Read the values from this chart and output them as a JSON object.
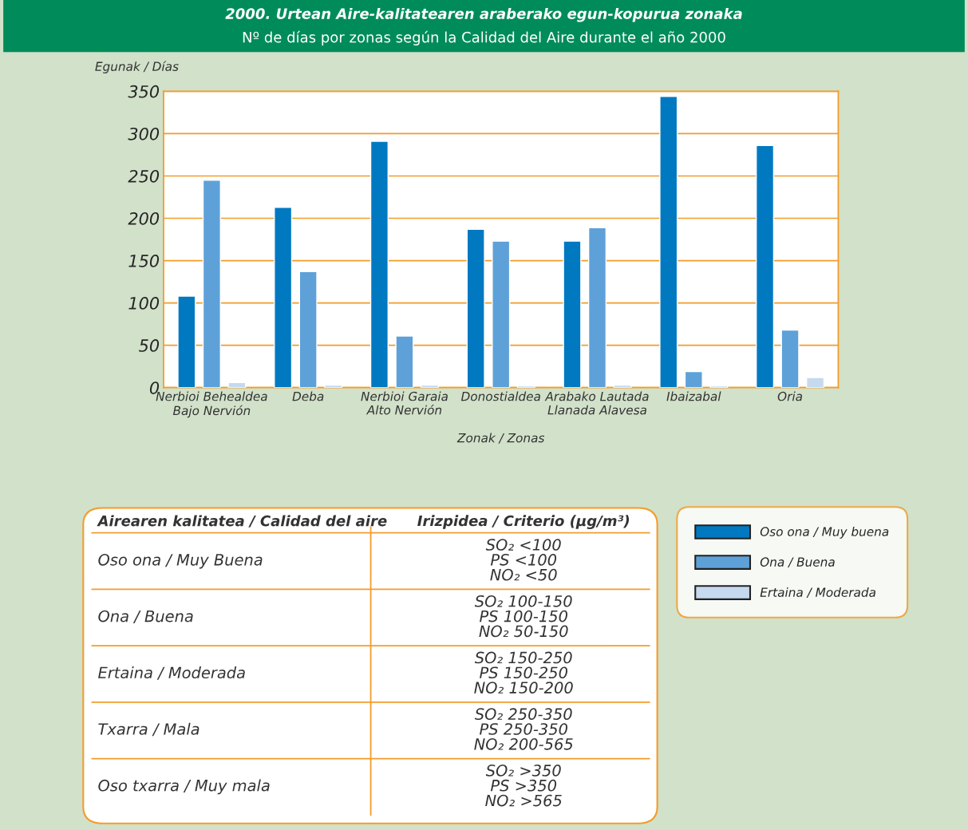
{
  "chart_data": {
    "type": "bar",
    "title": "2000. Urtean Aire-kalitatearen araberako egun-kopurua zonaka",
    "subtitle": "Nº de días por zonas según la Calidad del Aire durante el año 2000",
    "xlabel": "Zonak / Zonas",
    "ylabel": "Egunak / Días",
    "categories": [
      "Nerbioi Behealdea\nBajo Nervión",
      "Deba",
      "Nerbioi Garaia\nAlto Nervión",
      "Donostialdea",
      "Arabako Lautada\nLlanada Alavesa",
      "Ibaizabal",
      "Oria"
    ],
    "series": [
      {
        "name": "Oso ona / Muy buena",
        "color": "#0079c1",
        "values": [
          108,
          213,
          291,
          187,
          173,
          344,
          286
        ]
      },
      {
        "name": "Ona / Buena",
        "color": "#5ea1d8",
        "values": [
          245,
          137,
          61,
          173,
          189,
          19,
          68
        ]
      },
      {
        "name": "Ertaina / Moderada",
        "color": "#c5d9ef",
        "values": [
          6,
          3,
          3,
          2,
          3,
          2,
          12
        ]
      }
    ],
    "ylim": [
      0,
      350
    ],
    "yticks": [
      0,
      50,
      100,
      150,
      200,
      250,
      300,
      350
    ],
    "grid": "y",
    "legend": "bottom right",
    "annotations": [
      "Airearen kalitatea / Calidad del aire",
      "Irizpidea / Criterio (µg/m³)",
      "Oso ona / Muy Buena",
      "SO₂ <100\nPS <100\nNO₂ <50",
      "Ona / Buena",
      "SO₂ 100-150\nPS 100-150\nNO₂ 50-150",
      "Ertaina / Moderada",
      "SO₂ 150-250\nPS 150-250\nNO₂ 150-200",
      "Txarra / Mala",
      "SO₂ 250-350\nPS 250-350\nNO₂ 200-565",
      "Oso txarra / Muy mala",
      "SO₂ >350\nPS >350\nNO₂ >565"
    ]
  }
}
